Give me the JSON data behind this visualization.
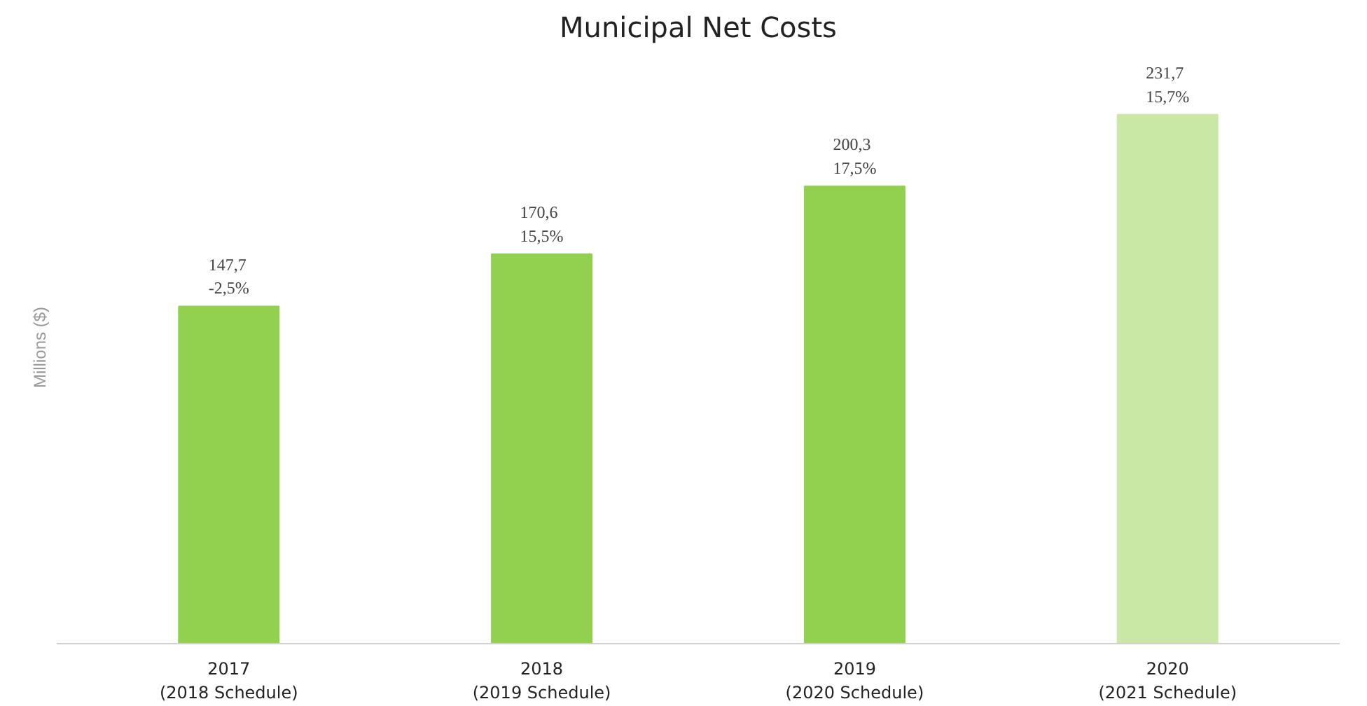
{
  "chart_data": {
    "type": "bar",
    "title": "Municipal Net Costs",
    "ylabel": "Millions ($)",
    "categories": [
      "2017\n(2018 Schedule)",
      "2018\n(2019 Schedule)",
      "2019\n(2020 Schedule)",
      "2020\n(2021 Schedule)"
    ],
    "values": [
      147.7,
      170.6,
      200.3,
      231.7
    ],
    "colors": [
      "#92d050",
      "#92d050",
      "#92d050",
      "#c9e8a6"
    ],
    "value_labels": [
      "147,7\n-2,5%",
      "170,6\n15,5%",
      "200,3\n17,5%",
      "231,7\n15,7%"
    ],
    "grid": false
  }
}
